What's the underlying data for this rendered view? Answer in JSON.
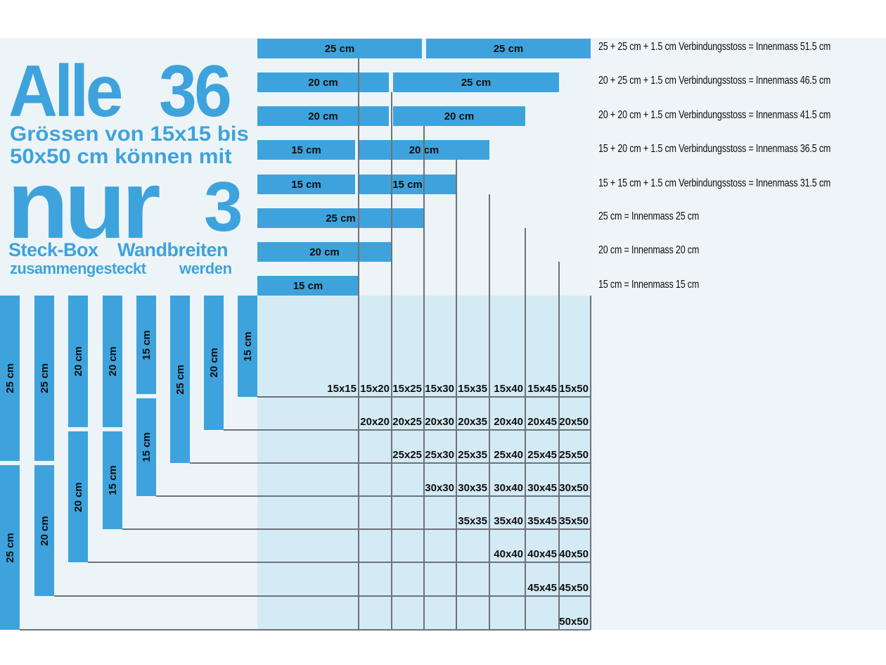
{
  "headline": {
    "alle": "Alle",
    "number36": "36",
    "line1": "Grössen von 15x15 bis",
    "line2": "50x50 cm können mit",
    "nur": "nur",
    "number3": "3",
    "steckbox": "Steck-Box",
    "wandbreiten": "Wandbreiten",
    "zusammen": "zusammengesteckt",
    "werden": "werden"
  },
  "horizontal_rows": [
    {
      "pieces": [
        "25 cm",
        "25 cm"
      ],
      "formula": "25 + 25 cm + 1.5 cm Verbindungsstoss = Innenmass 51.5 cm"
    },
    {
      "pieces": [
        "20 cm",
        "25 cm"
      ],
      "formula": "20 + 25 cm + 1.5 cm Verbindungsstoss = Innenmass 46.5 cm"
    },
    {
      "pieces": [
        "20 cm",
        "20 cm"
      ],
      "formula": "20 + 20 cm + 1.5 cm Verbindungsstoss = Innenmass 41.5 cm"
    },
    {
      "pieces": [
        "15 cm",
        "20 cm"
      ],
      "formula": "15 + 20 cm + 1.5 cm Verbindungsstoss = Innenmass 36.5 cm"
    },
    {
      "pieces": [
        "15 cm",
        "15 cm"
      ],
      "formula": "15 + 15 cm + 1.5 cm Verbindungsstoss = Innenmass 31.5 cm"
    },
    {
      "pieces": [
        "25 cm"
      ],
      "formula": "25 cm = Innenmass 25 cm"
    },
    {
      "pieces": [
        "20 cm"
      ],
      "formula": "20 cm = Innenmass 20 cm"
    },
    {
      "pieces": [
        "15 cm"
      ],
      "formula": "15 cm = Innenmass 15 cm"
    }
  ],
  "vertical_columns": [
    {
      "pieces": [
        "25 cm",
        "25 cm"
      ]
    },
    {
      "pieces": [
        "25 cm",
        "20 cm"
      ]
    },
    {
      "pieces": [
        "20 cm",
        "20 cm"
      ]
    },
    {
      "pieces": [
        "20 cm",
        "15 cm"
      ]
    },
    {
      "pieces": [
        "15 cm",
        "15 cm"
      ]
    },
    {
      "pieces": [
        "25 cm"
      ]
    },
    {
      "pieces": [
        "20 cm"
      ]
    },
    {
      "pieces": [
        "15 cm"
      ]
    }
  ],
  "grid_rows": [
    [
      "15x15",
      "15x20",
      "15x25",
      "15x30",
      "15x35",
      "15x40",
      "15x45",
      "15x50"
    ],
    [
      "20x20",
      "20x25",
      "20x30",
      "20x35",
      "20x40",
      "20x45",
      "20x50"
    ],
    [
      "25x25",
      "25x30",
      "25x35",
      "25x40",
      "25x45",
      "25x50"
    ],
    [
      "30x30",
      "30x35",
      "30x40",
      "30x45",
      "30x50"
    ],
    [
      "35x35",
      "35x40",
      "35x45",
      "35x50"
    ],
    [
      "40x40",
      "40x45",
      "40x50"
    ],
    [
      "45x45",
      "45x50"
    ],
    [
      "50x50"
    ]
  ],
  "colors": {
    "bar": "#3ea3dc",
    "panel": "#edf4f8",
    "grid_area": "#d4ebf5",
    "line": "#6d7278",
    "text": "#0d0d0d"
  }
}
